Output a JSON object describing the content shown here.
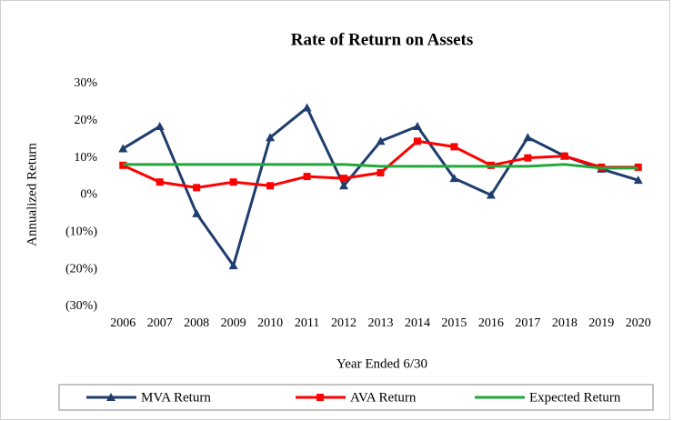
{
  "chart_data": {
    "type": "line",
    "title": "Rate of Return on Assets",
    "x_label": "Year Ended 6/30",
    "y_label": "Annualized Return",
    "categories": [
      "2006",
      "2007",
      "2008",
      "2009",
      "2010",
      "2011",
      "2012",
      "2013",
      "2014",
      "2015",
      "2016",
      "2017",
      "2018",
      "2019",
      "2020"
    ],
    "series": [
      {
        "name": "MVA Return",
        "color": "#1f3d6e",
        "marker": "triangle",
        "values": [
          12.5,
          18.5,
          -5,
          -19,
          15.5,
          23.5,
          2.5,
          14.5,
          18.5,
          4.5,
          0,
          15.5,
          10.5,
          7,
          4
        ]
      },
      {
        "name": "AVA Return",
        "color": "#ff0000",
        "marker": "square",
        "values": [
          8,
          3.5,
          2,
          3.5,
          2.5,
          5,
          4.5,
          6,
          14.5,
          13,
          8,
          10,
          10.5,
          7.5,
          7.5
        ]
      },
      {
        "name": "Expected Return",
        "color": "#22a83a",
        "marker": "none",
        "values": [
          8.25,
          8.25,
          8.25,
          8.25,
          8.25,
          8.25,
          8.25,
          7.75,
          7.75,
          7.75,
          7.75,
          7.75,
          8.25,
          7.25,
          7.25
        ]
      }
    ],
    "ylim": [
      -30,
      30
    ],
    "yticks": [
      {
        "value": 30,
        "label": "30%"
      },
      {
        "value": 20,
        "label": "20%"
      },
      {
        "value": 10,
        "label": "10%"
      },
      {
        "value": 0,
        "label": "0%"
      },
      {
        "value": -10,
        "label": "(10%)"
      },
      {
        "value": -20,
        "label": "(20%)"
      },
      {
        "value": -30,
        "label": "(30%)"
      }
    ],
    "grid": false,
    "legend": "bottom"
  }
}
